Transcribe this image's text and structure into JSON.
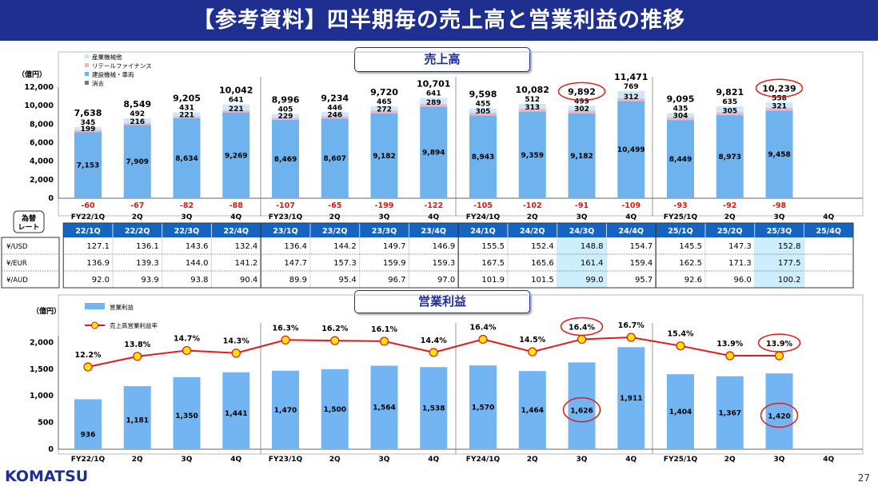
{
  "title": "【参考資料】四半期毎の売上高と営業利益の推移",
  "sales_section_title": "売上高",
  "op_section_title": "営業利益",
  "unit": "（億円）",
  "fx_label": [
    "為替",
    "レート"
  ],
  "page_number": "27",
  "logo": "KOMATSU",
  "colors": {
    "bar_construction": "#6fb3ee",
    "bar_retail": "#f4b4c4",
    "bar_industrial": "#cfe8f9",
    "bar_elimination": "#777777",
    "op_bar": "#72b5f2",
    "op_line": "#e41a1a",
    "op_marker": "#ffe600",
    "header_blue": "#1565c0",
    "highlight_cell": "#cdeefc",
    "annotation_red": "#d61f1f",
    "title_navy": "#1f2f8f"
  },
  "chart_data": [
    {
      "type": "bar",
      "stacked": true,
      "title": "売上高",
      "ylabel": "（億円）",
      "ylim": [
        0,
        12000
      ],
      "yticks": [
        0,
        2000,
        4000,
        6000,
        8000,
        10000,
        12000
      ],
      "grid": false,
      "legend_position": "top-left",
      "categories": [
        "FY22/1Q",
        "2Q",
        "3Q",
        "4Q",
        "FY23/1Q",
        "2Q",
        "3Q",
        "4Q",
        "FY24/1Q",
        "2Q",
        "3Q",
        "4Q",
        "FY25/1Q",
        "2Q",
        "3Q",
        "4Q"
      ],
      "series": [
        {
          "name": "建設機械・車両",
          "values": [
            7153,
            7909,
            8634,
            9269,
            8469,
            8607,
            9182,
            9894,
            8943,
            9359,
            9182,
            10499,
            8449,
            8973,
            9458,
            null
          ]
        },
        {
          "name": "リテールファイナンス",
          "values": [
            199,
            216,
            221,
            221,
            229,
            246,
            272,
            289,
            305,
            313,
            302,
            312,
            304,
            305,
            321,
            null
          ]
        },
        {
          "name": "産業機械他",
          "values": [
            345,
            492,
            431,
            641,
            405,
            446,
            465,
            641,
            455,
            512,
            499,
            769,
            435,
            635,
            558,
            null
          ]
        },
        {
          "name": "消去",
          "values": [
            -60,
            -67,
            -82,
            -88,
            -107,
            -65,
            -199,
            -122,
            -105,
            -102,
            -91,
            -109,
            -93,
            -92,
            -98,
            null
          ]
        }
      ],
      "totals": [
        7638,
        8549,
        9205,
        10042,
        8996,
        9234,
        9720,
        10701,
        9598,
        10082,
        9892,
        11471,
        9095,
        9821,
        10239,
        null
      ],
      "total_labels": [
        "7,638",
        "8,549",
        "9,205",
        "10,042",
        "8,996",
        "9,234",
        "9,720",
        "10,701",
        "9,598",
        "10,082",
        "9,892",
        "11,471",
        "9,095",
        "9,821",
        "10,239",
        ""
      ],
      "circled_index": [
        10,
        14
      ]
    },
    {
      "type": "bar+line",
      "title": "営業利益",
      "ylabel": "（億円）",
      "ylim": [
        0,
        2200
      ],
      "yticks": [
        0,
        500,
        1000,
        1500,
        2000
      ],
      "grid": false,
      "legend_position": "top-left",
      "categories": [
        "FY22/1Q",
        "2Q",
        "3Q",
        "4Q",
        "FY23/1Q",
        "2Q",
        "3Q",
        "4Q",
        "FY24/1Q",
        "2Q",
        "3Q",
        "4Q",
        "FY25/1Q",
        "2Q",
        "3Q",
        "4Q"
      ],
      "series": [
        {
          "name": "営業利益",
          "type": "bar",
          "values": [
            936,
            1181,
            1350,
            1441,
            1470,
            1500,
            1564,
            1538,
            1570,
            1464,
            1626,
            1911,
            1404,
            1367,
            1420,
            null
          ]
        },
        {
          "name": "売上高営業利益率",
          "type": "line",
          "values": [
            12.2,
            13.8,
            14.7,
            14.3,
            16.3,
            16.2,
            16.1,
            14.4,
            16.4,
            14.5,
            16.4,
            16.7,
            15.4,
            13.9,
            13.9,
            null
          ]
        }
      ],
      "circled_bar_index": [
        10,
        14
      ],
      "circled_rate_index": [
        10,
        14
      ]
    }
  ],
  "fx_table": {
    "headers": [
      "22/1Q",
      "22/2Q",
      "22/3Q",
      "22/4Q",
      "23/1Q",
      "23/2Q",
      "23/3Q",
      "23/4Q",
      "24/1Q",
      "24/2Q",
      "24/3Q",
      "24/4Q",
      "25/1Q",
      "25/2Q",
      "25/3Q",
      "25/4Q"
    ],
    "rows": [
      {
        "label": "¥/USD",
        "values": [
          "127.1",
          "136.1",
          "143.6",
          "132.4",
          "136.4",
          "144.2",
          "149.7",
          "146.9",
          "155.5",
          "152.4",
          "148.8",
          "154.7",
          "145.5",
          "147.3",
          "152.8",
          ""
        ]
      },
      {
        "label": "¥/EUR",
        "values": [
          "136.9",
          "139.3",
          "144.0",
          "141.2",
          "147.7",
          "157.3",
          "159.9",
          "159.3",
          "167.5",
          "165.6",
          "161.4",
          "159.4",
          "162.5",
          "171.3",
          "177.5",
          ""
        ]
      },
      {
        "label": "¥/AUD",
        "values": [
          "92.0",
          "93.9",
          "93.8",
          "90.4",
          "89.9",
          "95.4",
          "96.7",
          "97.0",
          "101.9",
          "101.5",
          "99.0",
          "95.7",
          "92.6",
          "96.0",
          "100.2",
          ""
        ]
      }
    ],
    "highlight_columns": [
      10,
      14
    ]
  }
}
